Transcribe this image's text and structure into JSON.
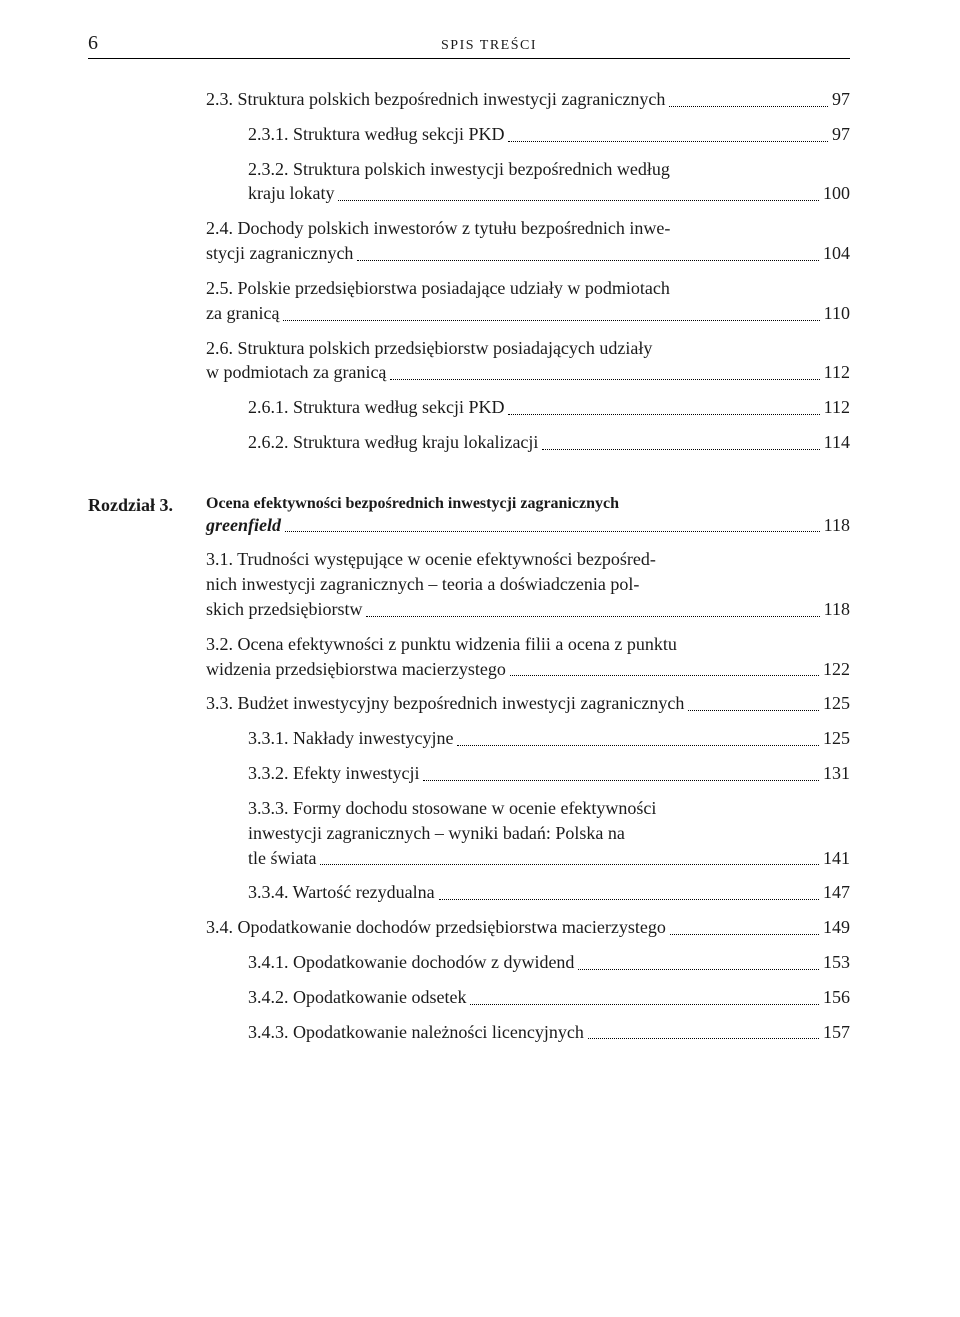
{
  "header": {
    "page_number": "6",
    "running_title": "SPIS TREŚCI"
  },
  "toc": {
    "pre_entries": [
      {
        "level": 1,
        "text": "2.3. Struktura polskich bezpośrednich inwestycji zagranicznych",
        "page": "97"
      },
      {
        "level": 2,
        "text": "2.3.1. Struktura według sekcji PKD",
        "page": "97"
      },
      {
        "level": 2,
        "first": "2.3.2. Struktura polskich inwestycji bezpośrednich według",
        "last": "kraju lokaty",
        "page": "100"
      },
      {
        "level": 1,
        "first": "2.4. Dochody polskich inwestorów z tytułu bezpośrednich inwe-",
        "last": "stycji zagranicznych",
        "page": "104"
      },
      {
        "level": 1,
        "first": "2.5. Polskie przedsiębiorstwa posiadające udziały w podmiotach",
        "last": "za granicą",
        "page": "110"
      },
      {
        "level": 1,
        "first": "2.6. Struktura polskich przedsiębiorstw posiadających udziały",
        "last": "w podmiotach za granicą",
        "page": "112"
      },
      {
        "level": 2,
        "text": "2.6.1. Struktura według sekcji PKD",
        "page": "112"
      },
      {
        "level": 2,
        "text": "2.6.2. Struktura według kraju lokalizacji",
        "page": "114"
      }
    ],
    "chapter": {
      "label": "Rozdział 3.",
      "title_first": "Ocena efektywności bezpośrednich inwestycji zagranicznych",
      "title_last_italic": "greenfield",
      "page": "118"
    },
    "chapter_entries": [
      {
        "level": 1,
        "first": "3.1. Trudności występujące w ocenie efektywności bezpośred-",
        "mid": "nich inwestycji zagranicznych – teoria a doświadczenia pol-",
        "last": "skich przedsiębiorstw",
        "page": "118"
      },
      {
        "level": 1,
        "first": "3.2. Ocena efektywności z punktu widzenia filii a ocena z punktu",
        "last": "widzenia przedsiębiorstwa macierzystego",
        "page": "122"
      },
      {
        "level": 1,
        "text": "3.3. Budżet inwestycyjny bezpośrednich inwestycji zagranicznych",
        "page": "125"
      },
      {
        "level": 2,
        "text": "3.3.1. Nakłady inwestycyjne",
        "page": "125"
      },
      {
        "level": 2,
        "text": "3.3.2. Efekty inwestycji",
        "page": "131"
      },
      {
        "level": 2,
        "first": "3.3.3. Formy dochodu stosowane w ocenie efektywności",
        "mid": "inwestycji zagranicznych – wyniki badań: Polska na",
        "last": "tle świata",
        "page": "141"
      },
      {
        "level": 2,
        "text": "3.3.4. Wartość rezydualna",
        "page": "147"
      },
      {
        "level": 1,
        "text": "3.4. Opodatkowanie dochodów przedsiębiorstwa macierzystego",
        "page": "149"
      },
      {
        "level": 2,
        "text": "3.4.1. Opodatkowanie dochodów z dywidend",
        "page": "153"
      },
      {
        "level": 2,
        "text": "3.4.2. Opodatkowanie odsetek",
        "page": "156"
      },
      {
        "level": 2,
        "text": "3.4.3. Opodatkowanie należności licencyjnych",
        "page": "157"
      }
    ]
  }
}
